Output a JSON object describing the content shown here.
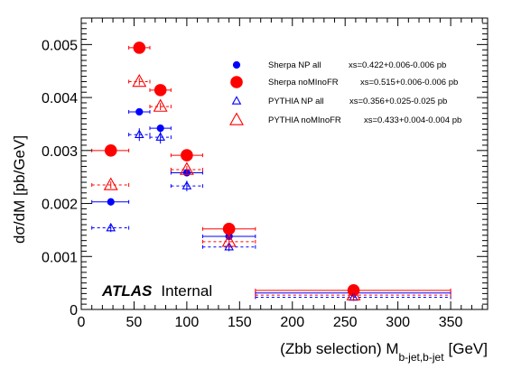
{
  "chart_data": {
    "type": "scatter",
    "xlabel_main": "(Zbb selection) M",
    "xlabel_sub": "b-jet,b-jet",
    "xlabel_unit": "[GeV]",
    "ylabel": "dσ/dM [pb/GeV]",
    "xlim": [
      0,
      385
    ],
    "ylim": [
      0,
      0.0055
    ],
    "x_ticks": [
      0,
      50,
      100,
      150,
      200,
      250,
      300,
      350
    ],
    "x_tick_labels": [
      "0",
      "50",
      "100",
      "150",
      "200",
      "250",
      "300",
      "350"
    ],
    "y_ticks": [
      0,
      0.001,
      0.002,
      0.003,
      0.004,
      0.005
    ],
    "y_tick_labels": [
      "0",
      "0.001",
      "0.002",
      "0.003",
      "0.004",
      "0.005"
    ],
    "atlas_label": "ATLAS",
    "atlas_sub": "Internal",
    "legend_position": "top-right",
    "series": [
      {
        "name": "Sherpa NP all",
        "xs_text": "xs=0.422+0.006-0.006 pb",
        "color": "#0000ff",
        "marker": "dot-small",
        "line": "solid",
        "points": [
          {
            "x": 28,
            "xlo": 10,
            "xhi": 45,
            "y": 0.00203,
            "yerr": 2e-05
          },
          {
            "x": 55,
            "xlo": 45,
            "xhi": 65,
            "y": 0.00373,
            "yerr": 2e-05
          },
          {
            "x": 75,
            "xlo": 65,
            "xhi": 85,
            "y": 0.00342,
            "yerr": 3e-05
          },
          {
            "x": 100,
            "xlo": 85,
            "xhi": 115,
            "y": 0.00258,
            "yerr": 2e-05
          },
          {
            "x": 140,
            "xlo": 115,
            "xhi": 165,
            "y": 0.00138,
            "yerr": 2e-05
          },
          {
            "x": 258,
            "xlo": 165,
            "xhi": 350,
            "y": 0.00031,
            "yerr": 1e-05
          }
        ]
      },
      {
        "name": "Sherpa noMInoFR",
        "xs_text": "xs=0.515+0.006-0.006 pb",
        "color": "#ff0000",
        "marker": "dot-large",
        "line": "solid",
        "points": [
          {
            "x": 28,
            "xlo": 10,
            "xhi": 45,
            "y": 0.003,
            "yerr": 2e-05
          },
          {
            "x": 55,
            "xlo": 45,
            "xhi": 65,
            "y": 0.00494,
            "yerr": 3e-05
          },
          {
            "x": 75,
            "xlo": 65,
            "xhi": 85,
            "y": 0.00414,
            "yerr": 3e-05
          },
          {
            "x": 100,
            "xlo": 85,
            "xhi": 115,
            "y": 0.00291,
            "yerr": 2e-05
          },
          {
            "x": 140,
            "xlo": 115,
            "xhi": 165,
            "y": 0.00152,
            "yerr": 2e-05
          },
          {
            "x": 258,
            "xlo": 165,
            "xhi": 350,
            "y": 0.00036,
            "yerr": 1e-05
          }
        ]
      },
      {
        "name": "PYTHIA NP all",
        "xs_text": "xs=0.356+0.025-0.025 pb",
        "color": "#0000ff",
        "marker": "triangle-small",
        "line": "dashed",
        "points": [
          {
            "x": 28,
            "xlo": 10,
            "xhi": 45,
            "y": 0.00154,
            "yerr": 8e-05
          },
          {
            "x": 55,
            "xlo": 45,
            "xhi": 65,
            "y": 0.0033,
            "yerr": 0.00012
          },
          {
            "x": 75,
            "xlo": 65,
            "xhi": 85,
            "y": 0.00325,
            "yerr": 0.00012
          },
          {
            "x": 100,
            "xlo": 85,
            "xhi": 115,
            "y": 0.00233,
            "yerr": 0.0001
          },
          {
            "x": 140,
            "xlo": 115,
            "xhi": 165,
            "y": 0.00118,
            "yerr": 8e-05
          },
          {
            "x": 258,
            "xlo": 165,
            "xhi": 350,
            "y": 0.00023,
            "yerr": 2e-05
          }
        ]
      },
      {
        "name": "PYTHIA noMInoFR",
        "xs_text": "xs=0.433+0.004-0.004 pb",
        "color": "#ff0000",
        "marker": "triangle-large",
        "line": "dashed",
        "points": [
          {
            "x": 28,
            "xlo": 10,
            "xhi": 45,
            "y": 0.00235,
            "yerr": 2e-05
          },
          {
            "x": 55,
            "xlo": 45,
            "xhi": 65,
            "y": 0.0043,
            "yerr": 3e-05
          },
          {
            "x": 75,
            "xlo": 65,
            "xhi": 85,
            "y": 0.00383,
            "yerr": 3e-05
          },
          {
            "x": 100,
            "xlo": 85,
            "xhi": 115,
            "y": 0.00264,
            "yerr": 2e-05
          },
          {
            "x": 140,
            "xlo": 115,
            "xhi": 165,
            "y": 0.00128,
            "yerr": 2e-05
          },
          {
            "x": 258,
            "xlo": 165,
            "xhi": 350,
            "y": 0.00027,
            "yerr": 1e-05
          }
        ]
      }
    ]
  }
}
